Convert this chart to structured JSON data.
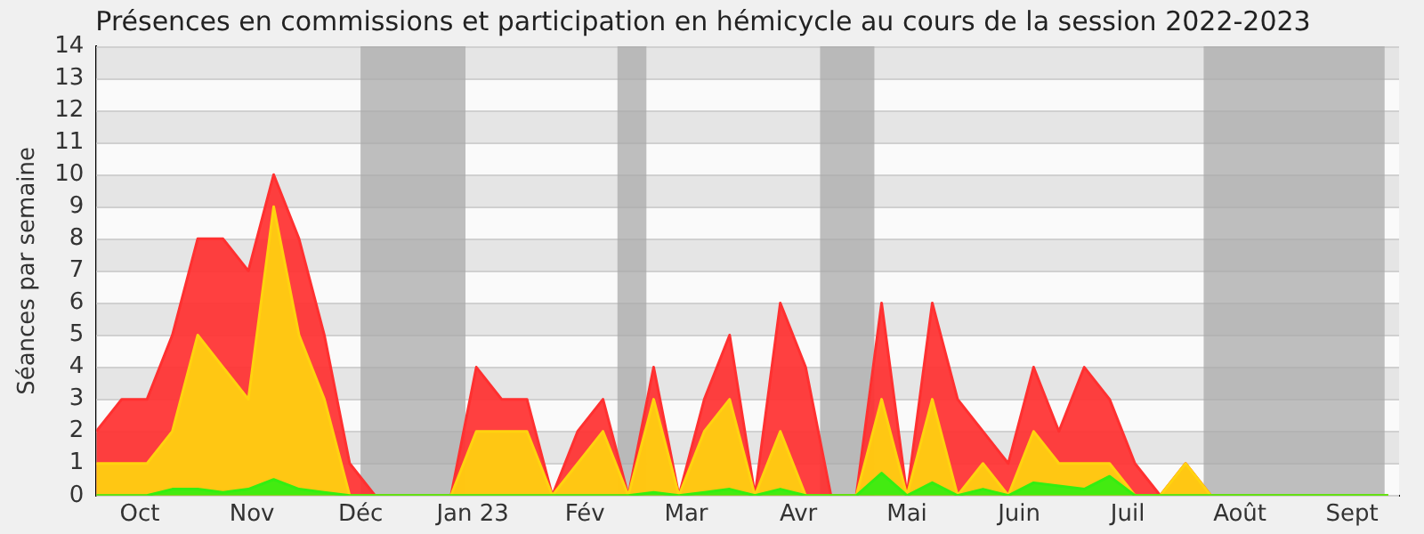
{
  "chart_data": {
    "type": "area",
    "title": "Présences en commissions et participation en hémicycle au cours de la session 2022-2023",
    "ylabel": "Séances par semaine",
    "x": [
      "2022-10-03",
      "2022-10-10",
      "2022-10-17",
      "2022-10-24",
      "2022-10-31",
      "2022-11-07",
      "2022-11-14",
      "2022-11-21",
      "2022-11-28",
      "2022-12-05",
      "2022-12-12",
      "2022-12-19",
      "2022-12-26",
      "2023-01-02",
      "2023-01-09",
      "2023-01-16",
      "2023-01-23",
      "2023-01-30",
      "2023-02-06",
      "2023-02-13",
      "2023-02-20",
      "2023-02-27",
      "2023-03-06",
      "2023-03-13",
      "2023-03-20",
      "2023-03-27",
      "2023-04-03",
      "2023-04-10",
      "2023-04-17",
      "2023-04-24",
      "2023-05-01",
      "2023-05-08",
      "2023-05-15",
      "2023-05-22",
      "2023-05-29",
      "2023-06-05",
      "2023-06-12",
      "2023-06-19",
      "2023-06-26",
      "2023-07-03",
      "2023-07-10",
      "2023-07-17",
      "2023-07-24",
      "2023-07-31",
      "2023-08-07",
      "2023-08-14",
      "2023-08-21",
      "2023-08-28",
      "2023-09-04",
      "2023-09-11",
      "2023-09-18",
      "2023-09-25"
    ],
    "series": [
      {
        "color": "#ff3030",
        "values": [
          2,
          3,
          3,
          5,
          8,
          8,
          7,
          10,
          8,
          5,
          1,
          0,
          0,
          0,
          0,
          4,
          3,
          3,
          0,
          2,
          3,
          0,
          4,
          0,
          3,
          5,
          0,
          6,
          4,
          0,
          0,
          6,
          0,
          6,
          3,
          2,
          1,
          4,
          2,
          4,
          3,
          1,
          0,
          1,
          0,
          0,
          0,
          0,
          0,
          0,
          0,
          0
        ]
      },
      {
        "color": "#ffd30f",
        "values": [
          1,
          1,
          1,
          2,
          5,
          4,
          3,
          9,
          5,
          3,
          0,
          0,
          0,
          0,
          0,
          2,
          2,
          2,
          0,
          1,
          2,
          0,
          3,
          0,
          2,
          3,
          0,
          2,
          0,
          0,
          0,
          3,
          0,
          3,
          0,
          1,
          0,
          2,
          1,
          1,
          1,
          0,
          0,
          1,
          0,
          0,
          0,
          0,
          0,
          0,
          0,
          0
        ]
      },
      {
        "color": "#33ee11",
        "values": [
          0,
          0,
          0,
          0.2,
          0.2,
          0.1,
          0.2,
          0.5,
          0.2,
          0.1,
          0,
          0,
          0,
          0,
          0,
          0,
          0,
          0,
          0,
          0,
          0,
          0,
          0.1,
          0,
          0.1,
          0.2,
          0,
          0.2,
          0,
          0,
          0,
          0.7,
          0,
          0.4,
          0,
          0.2,
          0,
          0.4,
          0.3,
          0.2,
          0.6,
          0,
          0,
          0,
          0,
          0,
          0,
          0,
          0,
          0,
          0,
          0
        ]
      }
    ],
    "xlim": [
      "2022-10-03",
      "2023-09-28"
    ],
    "xticks": [
      {
        "value": "2022-10-15",
        "label": "Oct"
      },
      {
        "value": "2022-11-15",
        "label": "Nov"
      },
      {
        "value": "2022-12-15",
        "label": "Déc"
      },
      {
        "value": "2023-01-15",
        "label": "Jan 23"
      },
      {
        "value": "2023-02-15",
        "label": "Fév"
      },
      {
        "value": "2023-03-15",
        "label": "Mar"
      },
      {
        "value": "2023-04-15",
        "label": "Avr"
      },
      {
        "value": "2023-05-15",
        "label": "Mai"
      },
      {
        "value": "2023-06-15",
        "label": "Juin"
      },
      {
        "value": "2023-07-15",
        "label": "Juil"
      },
      {
        "value": "2023-08-15",
        "label": "Août"
      },
      {
        "value": "2023-09-15",
        "label": "Sept"
      }
    ],
    "ylim": [
      0,
      14
    ],
    "yticks": [
      0,
      1,
      2,
      3,
      4,
      5,
      6,
      7,
      8,
      9,
      10,
      11,
      12,
      13,
      14
    ],
    "bands": [
      {
        "axis": "x",
        "from": "2022-12-15",
        "to": "2023-01-13",
        "color": "#aaaaaa"
      },
      {
        "axis": "x",
        "from": "2023-02-24",
        "to": "2023-03-04",
        "color": "#aaaaaa"
      },
      {
        "axis": "x",
        "from": "2023-04-21",
        "to": "2023-05-06",
        "color": "#aaaaaa"
      },
      {
        "axis": "x",
        "from": "2023-08-05",
        "to": "2023-09-24",
        "color": "#aaaaaa"
      }
    ],
    "grid": "y",
    "legend": false,
    "marker": "none",
    "line_style": "solid"
  }
}
